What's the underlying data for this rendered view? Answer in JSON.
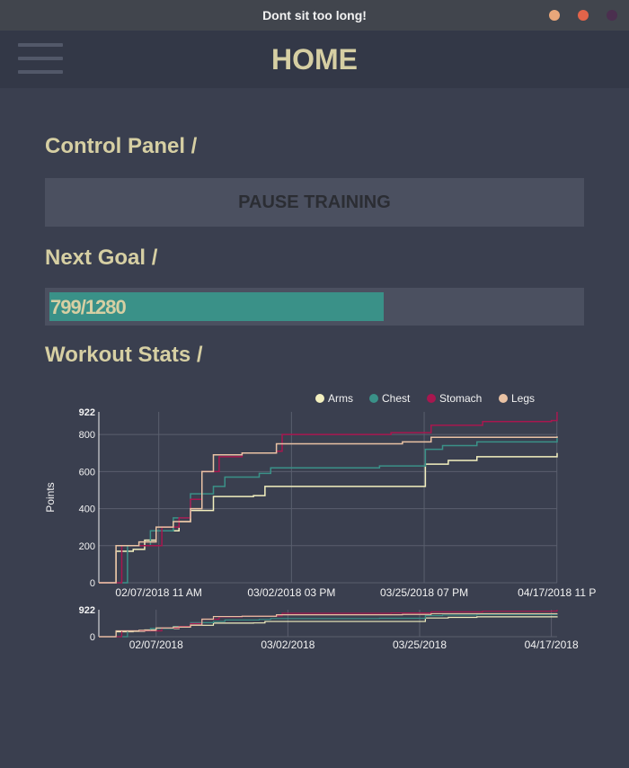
{
  "window": {
    "title": "Dont sit too long!",
    "buttons": [
      {
        "name": "minimize",
        "color": "#e9a77a"
      },
      {
        "name": "maximize",
        "color": "#e2644a"
      },
      {
        "name": "close",
        "color": "#4b2f4f"
      }
    ]
  },
  "header": {
    "title": "HOME",
    "menu_icon": "hamburger-icon"
  },
  "sections": {
    "control_panel": "Control Panel /",
    "next_goal": "Next Goal /",
    "workout_stats": "Workout Stats /"
  },
  "control_panel": {
    "pause_label": "PAUSE TRAINING"
  },
  "goal": {
    "current": 799,
    "target": 1280,
    "text": "799/1280"
  },
  "chart_data": {
    "type": "line",
    "ylabel": "Points",
    "xlabel": "",
    "ylim": [
      0,
      922
    ],
    "y_ticks": [
      "0",
      "200",
      "400",
      "600",
      "800",
      "922"
    ],
    "x_tick_labels": [
      "02/07/2018 11 AM",
      "03/02/2018 03 PM",
      "03/25/2018 07 PM",
      "04/17/2018 11 P"
    ],
    "nav_x_tick_labels": [
      "02/07/2018",
      "03/02/2018",
      "03/25/2018",
      "04/17/2018"
    ],
    "nav_y_ticks": [
      "0",
      "922"
    ],
    "xlim": [
      "2018-01-28",
      "2018-04-18"
    ],
    "legend_position": "top-right",
    "grid": true,
    "series": [
      {
        "name": "Arms",
        "color": "#f3f0bf",
        "points": [
          [
            "2018-01-28",
            0
          ],
          [
            "2018-01-31",
            170
          ],
          [
            "2018-02-03",
            180
          ],
          [
            "2018-02-05",
            230
          ],
          [
            "2018-02-07",
            280
          ],
          [
            "2018-02-11",
            330
          ],
          [
            "2018-02-13",
            390
          ],
          [
            "2018-02-16",
            390
          ],
          [
            "2018-02-17",
            465
          ],
          [
            "2018-02-24",
            470
          ],
          [
            "2018-02-26",
            520
          ],
          [
            "2018-03-23",
            520
          ],
          [
            "2018-03-26",
            640
          ],
          [
            "2018-03-30",
            660
          ],
          [
            "2018-04-04",
            680
          ],
          [
            "2018-04-18",
            700
          ]
        ]
      },
      {
        "name": "Chest",
        "color": "#3a9188",
        "points": [
          [
            "2018-01-28",
            0
          ],
          [
            "2018-02-02",
            200
          ],
          [
            "2018-02-06",
            280
          ],
          [
            "2018-02-10",
            350
          ],
          [
            "2018-02-13",
            480
          ],
          [
            "2018-02-17",
            520
          ],
          [
            "2018-02-19",
            570
          ],
          [
            "2018-02-25",
            590
          ],
          [
            "2018-02-27",
            620
          ],
          [
            "2018-03-12",
            620
          ],
          [
            "2018-03-18",
            630
          ],
          [
            "2018-03-26",
            720
          ],
          [
            "2018-03-29",
            740
          ],
          [
            "2018-04-04",
            760
          ],
          [
            "2018-04-18",
            780
          ]
        ]
      },
      {
        "name": "Stomach",
        "color": "#a8174f",
        "points": [
          [
            "2018-01-28",
            0
          ],
          [
            "2018-02-01",
            200
          ],
          [
            "2018-02-05",
            200
          ],
          [
            "2018-02-08",
            300
          ],
          [
            "2018-02-11",
            350
          ],
          [
            "2018-02-13",
            450
          ],
          [
            "2018-02-15",
            600
          ],
          [
            "2018-02-18",
            680
          ],
          [
            "2018-02-22",
            700
          ],
          [
            "2018-02-28",
            710
          ],
          [
            "2018-02-29",
            800
          ],
          [
            "2018-03-20",
            810
          ],
          [
            "2018-03-27",
            850
          ],
          [
            "2018-04-05",
            870
          ],
          [
            "2018-04-17",
            875
          ],
          [
            "2018-04-18",
            922
          ]
        ]
      },
      {
        "name": "Legs",
        "color": "#e9c2a4",
        "points": [
          [
            "2018-01-28",
            0
          ],
          [
            "2018-01-31",
            200
          ],
          [
            "2018-02-04",
            220
          ],
          [
            "2018-02-07",
            300
          ],
          [
            "2018-02-10",
            330
          ],
          [
            "2018-02-13",
            400
          ],
          [
            "2018-02-15",
            600
          ],
          [
            "2018-02-17",
            690
          ],
          [
            "2018-02-22",
            700
          ],
          [
            "2018-02-28",
            750
          ],
          [
            "2018-03-22",
            760
          ],
          [
            "2018-03-27",
            785
          ],
          [
            "2018-04-18",
            790
          ]
        ]
      }
    ]
  }
}
